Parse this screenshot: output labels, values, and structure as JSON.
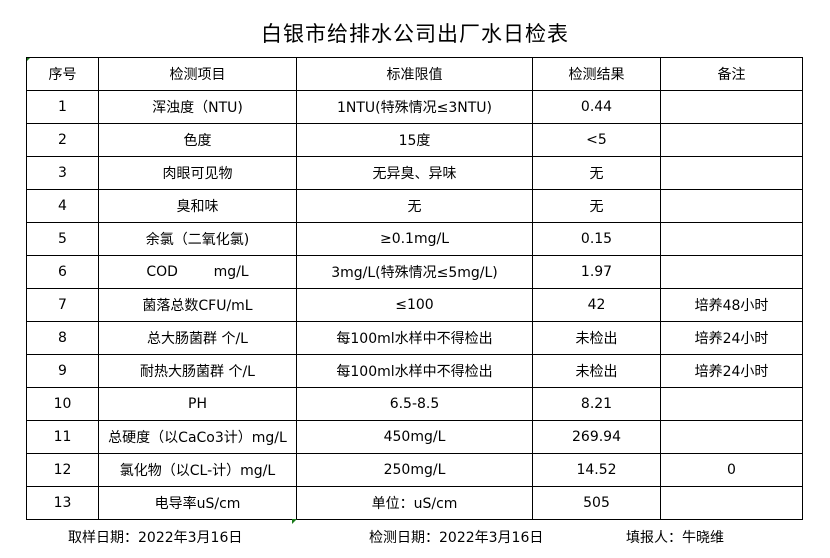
{
  "title": "白银市给排水公司出厂水日检表",
  "table": {
    "headers": [
      "序号",
      "检测项目",
      "标准限值",
      "检测结果",
      "备注"
    ],
    "rows": [
      [
        "1",
        "浑浊度（NTU)",
        "1NTU(特殊情况≤3NTU)",
        "0.44",
        ""
      ],
      [
        "2",
        "色度",
        "15度",
        "<5",
        ""
      ],
      [
        "3",
        "肉眼可见物",
        "无异臭、异味",
        "无",
        ""
      ],
      [
        "4",
        "臭和味",
        "无",
        "无",
        ""
      ],
      [
        "5",
        "余氯（二氧化氯)",
        "≥0.1mg/L",
        "0.15",
        ""
      ],
      [
        "6",
        "COD        mg/L",
        "3mg/L(特殊情况≤5mg/L)",
        "1.97",
        ""
      ],
      [
        "7",
        "菌落总数CFU/mL",
        "≤100",
        "42",
        "培养48小时"
      ],
      [
        "8",
        "总大肠菌群 个/L",
        "每100ml水样中不得检出",
        "未检出",
        "培养24小时"
      ],
      [
        "9",
        "耐热大肠菌群 个/L",
        "每100ml水样中不得检出",
        "未检出",
        "培养24小时"
      ],
      [
        "10",
        "PH",
        "6.5-8.5",
        "8.21",
        ""
      ],
      [
        "11",
        "总硬度（以CaCo3计）mg/L",
        "450mg/L",
        "269.94",
        ""
      ],
      [
        "12",
        "氯化物（以CL-计）mg/L",
        "250mg/L",
        "14.52",
        "0"
      ],
      [
        "13",
        "电导率uS/cm",
        "单位：uS/cm",
        "505",
        ""
      ]
    ]
  },
  "footer": {
    "sample_date": "取样日期：2022年3月16日",
    "test_date": "检测日期：2022年3月16日",
    "reporter": "填报人：牛晓维"
  }
}
